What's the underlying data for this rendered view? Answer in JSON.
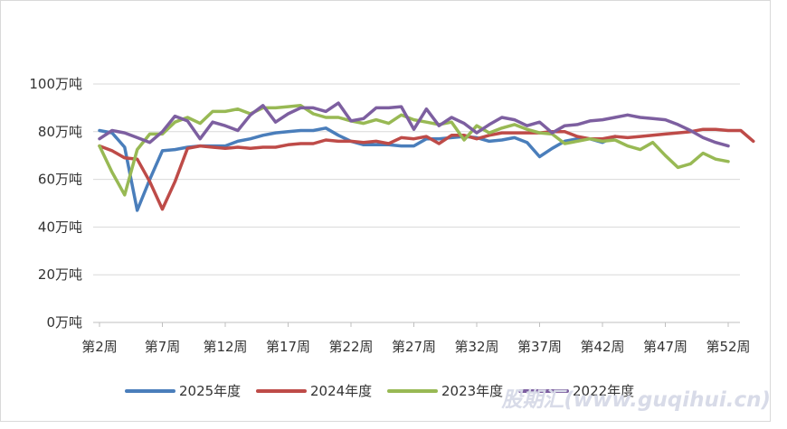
{
  "watermark": "股期汇(www.guqihui.cn)",
  "chart_data": {
    "type": "line",
    "title": "",
    "xlabel": "",
    "ylabel": "",
    "ylim": [
      0,
      100
    ],
    "y_ticks": [
      {
        "value": 0,
        "label": "0万吨"
      },
      {
        "value": 20,
        "label": "20万吨"
      },
      {
        "value": 40,
        "label": "40万吨"
      },
      {
        "value": 60,
        "label": "60万吨"
      },
      {
        "value": 80,
        "label": "80万吨"
      },
      {
        "value": 100,
        "label": "100万吨"
      }
    ],
    "x_range": [
      2,
      52
    ],
    "x_ticks": [
      {
        "week": 2,
        "label": "第2周"
      },
      {
        "week": 7,
        "label": "第7周"
      },
      {
        "week": 12,
        "label": "第12周"
      },
      {
        "week": 17,
        "label": "第17周"
      },
      {
        "week": 22,
        "label": "第22周"
      },
      {
        "week": 27,
        "label": "第27周"
      },
      {
        "week": 32,
        "label": "第32周"
      },
      {
        "week": 37,
        "label": "第37周"
      },
      {
        "week": 42,
        "label": "第42周"
      },
      {
        "week": 47,
        "label": "第47周"
      },
      {
        "week": 52,
        "label": "第52周"
      }
    ],
    "gridlines": true,
    "legend_position": "bottom",
    "series": [
      {
        "name": "2025年度",
        "color": "#4a7ebb",
        "values": [
          80.5,
          79.5,
          73.5,
          47,
          60,
          72,
          72.5,
          73.5,
          74,
          74,
          74,
          76,
          77,
          78.5,
          79.5,
          80,
          80.5,
          80.5,
          81.5,
          78.5,
          76,
          74.5,
          74.5,
          74.5,
          74,
          74,
          77,
          77,
          77.5,
          78,
          77.5,
          76,
          76.5,
          77.5,
          75.5,
          69.5,
          73,
          76,
          77,
          77,
          75.5,
          78
        ]
      },
      {
        "name": "2024年度",
        "color": "#be4b48",
        "values": [
          74,
          72,
          69,
          68.5,
          59,
          47.5,
          59,
          73,
          74,
          73.5,
          73,
          73.5,
          73,
          73.5,
          73.5,
          74.5,
          75,
          75,
          76.5,
          76,
          76,
          75.5,
          76,
          75,
          77.5,
          77,
          78,
          75,
          78.5,
          78.5,
          77,
          78.5,
          79.5,
          79.5,
          79.5,
          79.5,
          80,
          80,
          78,
          77,
          77,
          78,
          77.5,
          78,
          78.5,
          79,
          79.5,
          80,
          81,
          81,
          80.5,
          80.5,
          76
        ]
      },
      {
        "name": "2023年度",
        "color": "#98b954",
        "values": [
          74,
          63,
          53.5,
          72.5,
          79,
          79,
          84,
          86,
          83.5,
          88.5,
          88.5,
          89.5,
          87.5,
          90,
          90,
          90.5,
          91,
          87.5,
          86,
          86,
          84.5,
          83.5,
          85,
          83.5,
          87,
          85,
          84,
          83,
          84,
          76.5,
          82.5,
          79.5,
          81.5,
          83,
          81,
          79.5,
          79,
          75,
          76,
          77,
          76,
          76.5,
          74,
          72.5,
          75.5,
          70,
          65,
          66.5,
          71,
          68.5,
          67.5
        ]
      },
      {
        "name": "2022年度",
        "color": "#7d5fa0",
        "values": [
          77,
          80.5,
          79.5,
          77.5,
          75.5,
          80,
          86.5,
          84.5,
          77,
          84,
          82.5,
          80.5,
          87,
          91,
          84,
          87.5,
          90,
          90,
          88.5,
          92,
          84.5,
          85.5,
          90,
          90,
          90.5,
          81,
          89.5,
          82.5,
          86,
          83.5,
          79.5,
          83,
          86,
          85,
          82.5,
          84,
          79.5,
          82.5,
          83,
          84.5,
          85,
          86,
          87,
          86,
          85.5,
          85,
          83,
          80.5,
          77.5,
          75.5,
          74
        ]
      }
    ]
  }
}
